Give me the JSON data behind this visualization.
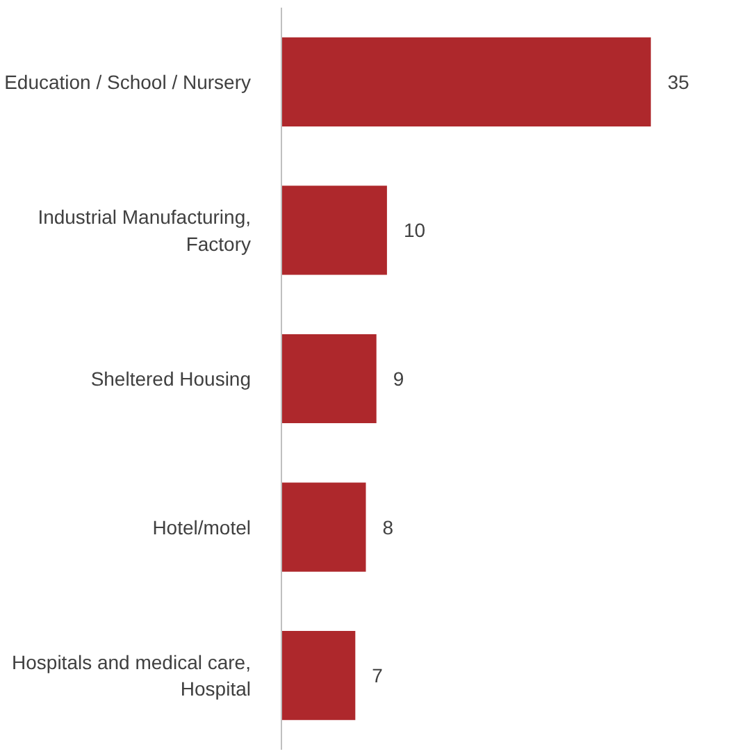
{
  "chart_data": {
    "type": "bar",
    "orientation": "horizontal",
    "categories": [
      "Education / School / Nursery",
      "Industrial Manufacturing,\nFactory",
      "Sheltered Housing",
      "Hotel/motel",
      "Hospitals and medical care,\nHospital"
    ],
    "values": [
      35,
      10,
      9,
      8,
      7
    ],
    "color": "#ae282c",
    "data_labels": true,
    "grid": false
  }
}
